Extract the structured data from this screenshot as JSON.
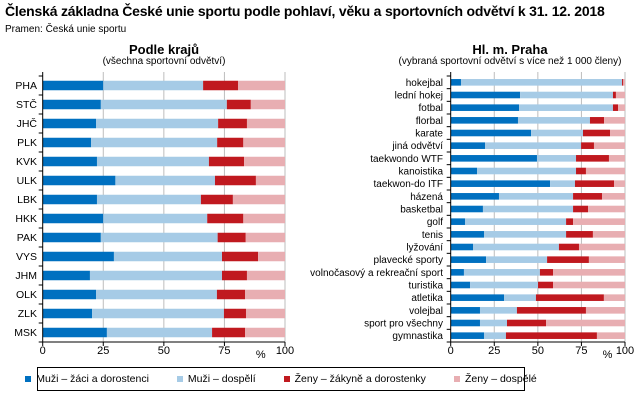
{
  "title": "Členská základna České unie sportu podle pohlaví, věku a sportovních odvětví k 31. 12. 2018",
  "source": "Pramen: Česká unie sportu",
  "legend": [
    {
      "label": "Muži – žáci a dorostenci",
      "color": "#0070c0"
    },
    {
      "label": "Muži – dospělí",
      "color": "#a6cbe6"
    },
    {
      "label": "Ženy – žákyně a dorostenky",
      "color": "#c0191f"
    },
    {
      "label": "Ženy – dospělé",
      "color": "#e8aeb2"
    }
  ],
  "chart_data": [
    {
      "type": "bar",
      "orientation": "horizontal-stacked-100",
      "title": "Podle krajů",
      "subtitle": "(všechna sportovní odvětví)",
      "xlabel": "%",
      "xlim": [
        0,
        100
      ],
      "xticks": [
        "0",
        "25",
        "50",
        "75",
        "100"
      ],
      "grid": true,
      "categories": [
        "PHA",
        "STČ",
        "JHČ",
        "PLK",
        "KVK",
        "ULK",
        "LBK",
        "HKK",
        "PAK",
        "VYS",
        "JHM",
        "OLK",
        "ZLK",
        "MSK"
      ],
      "series": [
        {
          "name": "Muži – žáci a dorostenci",
          "values": [
            25,
            24,
            22,
            20,
            22.4,
            30,
            22.4,
            25,
            24,
            29.4,
            19.5,
            22,
            20.4,
            26.5
          ]
        },
        {
          "name": "Muži – dospělí",
          "values": [
            41.2,
            52,
            50.4,
            52,
            46.2,
            41.1,
            42.9,
            42.9,
            48.2,
            44.6,
            54.5,
            49.9,
            54.4,
            43.4
          ]
        },
        {
          "name": "Ženy – žákyně a dorostenky",
          "values": [
            14.4,
            9.9,
            11.9,
            10.8,
            14.5,
            16.9,
            13.2,
            14.9,
            11.6,
            14.9,
            10.3,
            11.6,
            9.1,
            13.6
          ]
        },
        {
          "name": "Ženy – dospělé",
          "values": [
            19.4,
            14.1,
            15.7,
            17.2,
            16.9,
            12,
            21.5,
            17.2,
            16.2,
            11.1,
            15.7,
            16.5,
            16.1,
            16.5
          ]
        }
      ]
    },
    {
      "type": "bar",
      "orientation": "horizontal-stacked-100",
      "title": "Hl. m. Praha",
      "subtitle": "(vybraná sportovní odvětví s více než 1 000 členy)",
      "xlabel": "%",
      "xlim": [
        0,
        100
      ],
      "xticks": [
        "0",
        "25",
        "50",
        "75",
        "100"
      ],
      "grid": true,
      "categories": [
        "hokejbal",
        "lední hokej",
        "fotbal",
        "florbal",
        "karate",
        "jiná odvětví",
        "taekwondo WTF",
        "kanoistika",
        "taekwon-do ITF",
        "házená",
        "basketbal",
        "golf",
        "tenis",
        "lyžování",
        "plavecké sporty",
        "volnočasový a rekreační sport",
        "turistika",
        "atletika",
        "volejbal",
        "sport pro všechny",
        "gymnastika"
      ],
      "series": [
        {
          "name": "Muži – žáci a dorostenci",
          "values": [
            5.9,
            39.8,
            39.2,
            38.6,
            46.1,
            19.7,
            49.5,
            15.1,
            57,
            27.7,
            18.5,
            8.2,
            19.1,
            12.8,
            20.3,
            7.6,
            11.1,
            30.6,
            16.8,
            16.8,
            19.1
          ]
        },
        {
          "name": "Muži – dospělí",
          "values": [
            92.4,
            53.3,
            53.9,
            41.3,
            29.8,
            55.1,
            22.4,
            56.8,
            14.3,
            42.5,
            51.7,
            58,
            47.1,
            49.3,
            35,
            43.6,
            39,
            18.3,
            21.2,
            15.5,
            12.6
          ]
        },
        {
          "name": "Ženy – žákyně a dorostenky",
          "values": [
            0.7,
            1.7,
            2.9,
            8.1,
            15.5,
            7.4,
            18.9,
            5.7,
            22.4,
            16.6,
            8.6,
            4,
            15.4,
            11.5,
            24,
            7.5,
            8.6,
            39,
            39.6,
            22.4,
            52.2
          ]
        },
        {
          "name": "Ženy – dospělé",
          "values": [
            1,
            5.2,
            4,
            12,
            8.6,
            17.8,
            9.2,
            22.4,
            6.3,
            13.2,
            21.2,
            29.8,
            18.4,
            26.4,
            20.7,
            41.3,
            41.3,
            12.1,
            22.4,
            45.3,
            16.1
          ]
        }
      ]
    }
  ]
}
